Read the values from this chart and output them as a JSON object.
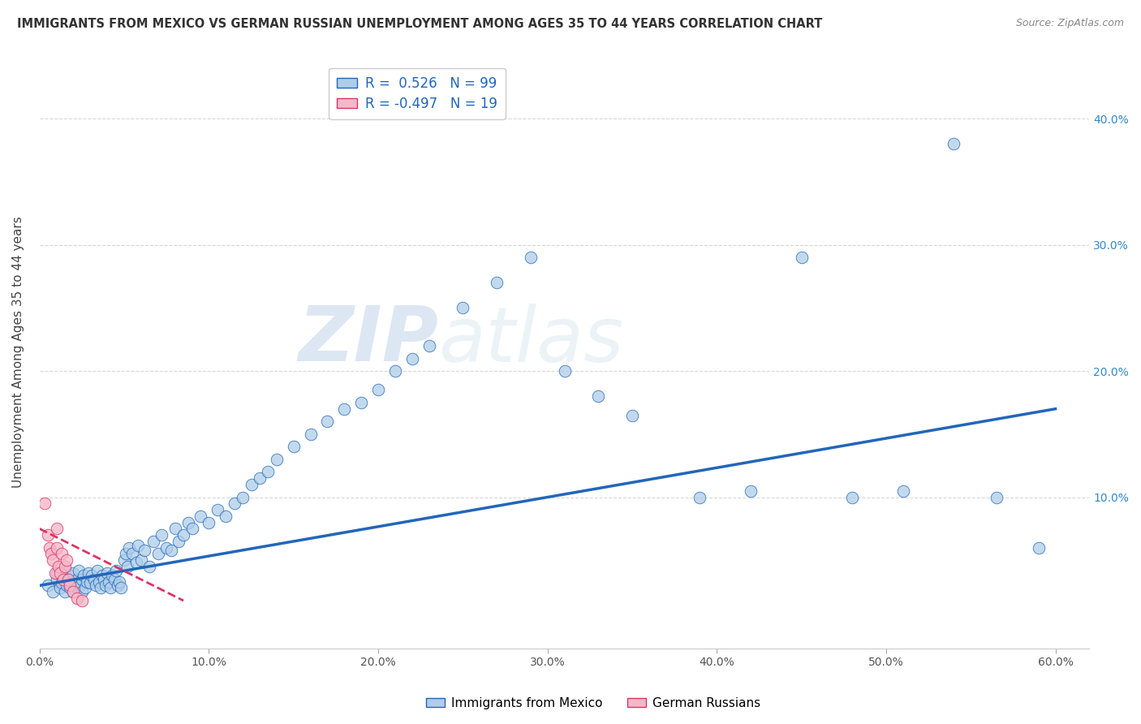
{
  "title": "IMMIGRANTS FROM MEXICO VS GERMAN RUSSIAN UNEMPLOYMENT AMONG AGES 35 TO 44 YEARS CORRELATION CHART",
  "source": "Source: ZipAtlas.com",
  "ylabel": "Unemployment Among Ages 35 to 44 years",
  "xlim": [
    0.0,
    0.62
  ],
  "ylim": [
    -0.02,
    0.45
  ],
  "xticks": [
    0.0,
    0.1,
    0.2,
    0.3,
    0.4,
    0.5,
    0.6
  ],
  "xtick_labels": [
    "0.0%",
    "10.0%",
    "20.0%",
    "30.0%",
    "40.0%",
    "50.0%",
    "60.0%"
  ],
  "yticks": [
    0.0,
    0.1,
    0.2,
    0.3,
    0.4
  ],
  "ytick_labels_right": [
    "",
    "10.0%",
    "20.0%",
    "30.0%",
    "40.0%"
  ],
  "blue_R": 0.526,
  "blue_N": 99,
  "pink_R": -0.497,
  "pink_N": 19,
  "blue_color": "#aecde8",
  "pink_color": "#f5b8c8",
  "blue_line_color": "#2266bb",
  "pink_line_color": "#dd3366",
  "background_color": "#ffffff",
  "grid_color": "#d8d8d8",
  "watermark": "ZIPatlas",
  "blue_scatter_x": [
    0.005,
    0.008,
    0.01,
    0.01,
    0.012,
    0.013,
    0.014,
    0.015,
    0.015,
    0.016,
    0.017,
    0.018,
    0.018,
    0.019,
    0.02,
    0.02,
    0.021,
    0.022,
    0.022,
    0.023,
    0.024,
    0.025,
    0.025,
    0.026,
    0.027,
    0.028,
    0.029,
    0.03,
    0.031,
    0.032,
    0.033,
    0.034,
    0.035,
    0.036,
    0.037,
    0.038,
    0.039,
    0.04,
    0.041,
    0.042,
    0.043,
    0.044,
    0.045,
    0.046,
    0.047,
    0.048,
    0.05,
    0.051,
    0.052,
    0.053,
    0.055,
    0.057,
    0.058,
    0.06,
    0.062,
    0.065,
    0.067,
    0.07,
    0.072,
    0.075,
    0.078,
    0.08,
    0.082,
    0.085,
    0.088,
    0.09,
    0.095,
    0.1,
    0.105,
    0.11,
    0.115,
    0.12,
    0.125,
    0.13,
    0.135,
    0.14,
    0.15,
    0.16,
    0.17,
    0.18,
    0.19,
    0.2,
    0.21,
    0.22,
    0.23,
    0.25,
    0.27,
    0.29,
    0.31,
    0.33,
    0.35,
    0.39,
    0.42,
    0.45,
    0.48,
    0.51,
    0.54,
    0.565,
    0.59
  ],
  "blue_scatter_y": [
    0.03,
    0.025,
    0.035,
    0.04,
    0.028,
    0.032,
    0.038,
    0.025,
    0.042,
    0.03,
    0.035,
    0.028,
    0.038,
    0.033,
    0.025,
    0.04,
    0.03,
    0.035,
    0.028,
    0.042,
    0.03,
    0.025,
    0.035,
    0.038,
    0.028,
    0.033,
    0.04,
    0.032,
    0.038,
    0.035,
    0.03,
    0.042,
    0.033,
    0.028,
    0.038,
    0.035,
    0.03,
    0.04,
    0.033,
    0.028,
    0.038,
    0.035,
    0.042,
    0.03,
    0.033,
    0.028,
    0.05,
    0.055,
    0.045,
    0.06,
    0.055,
    0.048,
    0.062,
    0.05,
    0.058,
    0.045,
    0.065,
    0.055,
    0.07,
    0.06,
    0.058,
    0.075,
    0.065,
    0.07,
    0.08,
    0.075,
    0.085,
    0.08,
    0.09,
    0.085,
    0.095,
    0.1,
    0.11,
    0.115,
    0.12,
    0.13,
    0.14,
    0.15,
    0.16,
    0.17,
    0.175,
    0.185,
    0.2,
    0.21,
    0.22,
    0.25,
    0.27,
    0.29,
    0.2,
    0.18,
    0.165,
    0.1,
    0.105,
    0.29,
    0.1,
    0.105,
    0.38,
    0.1,
    0.06
  ],
  "pink_scatter_x": [
    0.003,
    0.005,
    0.006,
    0.007,
    0.008,
    0.009,
    0.01,
    0.01,
    0.011,
    0.012,
    0.013,
    0.014,
    0.015,
    0.016,
    0.017,
    0.018,
    0.02,
    0.022,
    0.025
  ],
  "pink_scatter_y": [
    0.095,
    0.07,
    0.06,
    0.055,
    0.05,
    0.04,
    0.06,
    0.075,
    0.045,
    0.04,
    0.055,
    0.035,
    0.045,
    0.05,
    0.035,
    0.03,
    0.025,
    0.02,
    0.018
  ],
  "blue_trendline_x": [
    0.0,
    0.6
  ],
  "blue_trendline_y": [
    0.03,
    0.17
  ],
  "pink_trendline_x": [
    0.0,
    0.085
  ],
  "pink_trendline_y": [
    0.075,
    0.018
  ],
  "legend_labels": [
    "Immigrants from Mexico",
    "German Russians"
  ]
}
